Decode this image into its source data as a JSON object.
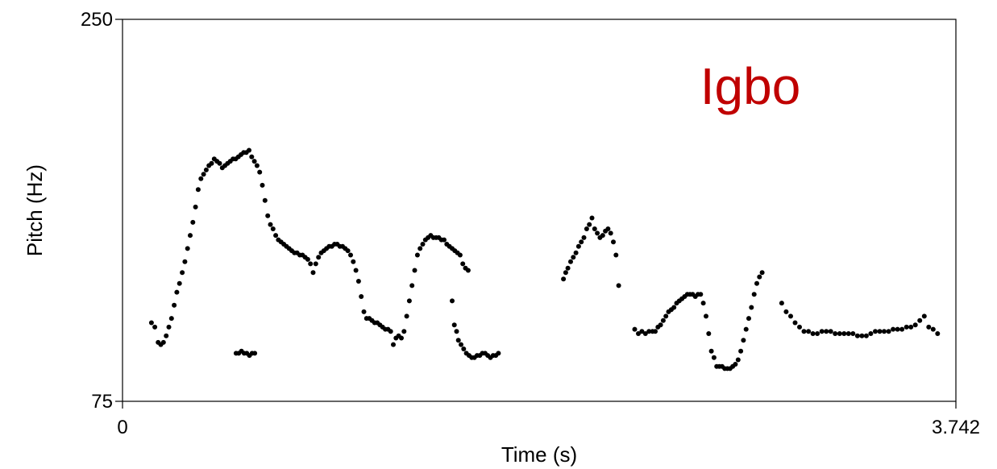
{
  "chart_data": {
    "type": "scatter",
    "xlabel": "Time (s)",
    "ylabel": "Pitch (Hz)",
    "xlim": [
      0,
      3.742
    ],
    "ylim": [
      75,
      250
    ],
    "xtick_labels": [
      "0",
      "3.742"
    ],
    "ytick_labels": [
      "75",
      "250"
    ],
    "grid": false,
    "annotation": {
      "text": "Igbo",
      "color": "#c00000"
    },
    "point_color": "#000000",
    "series": [
      {
        "x": [
          0.13,
          0.145,
          0.16,
          0.172,
          0.184,
          0.196,
          0.208,
          0.22,
          0.232,
          0.244,
          0.256,
          0.268,
          0.28,
          0.292,
          0.304,
          0.316,
          0.328,
          0.34,
          0.352,
          0.364,
          0.376,
          0.388,
          0.4,
          0.412,
          0.424,
          0.436,
          0.448,
          0.46,
          0.472,
          0.484,
          0.496,
          0.508,
          0.52,
          0.532,
          0.544,
          0.556,
          0.568,
          0.58,
          0.592,
          0.604,
          0.616,
          0.628,
          0.64,
          0.652,
          0.664,
          0.676,
          0.688,
          0.7,
          0.712,
          0.724,
          0.736,
          0.748,
          0.76,
          0.772,
          0.784,
          0.796,
          0.808,
          0.82,
          0.832,
          0.844,
          0.856,
          0.868,
          0.88,
          0.892,
          0.904,
          0.916,
          0.928,
          0.94,
          0.952,
          0.964,
          0.976,
          0.988,
          1.0,
          1.012,
          1.024,
          1.036,
          1.048,
          1.06,
          1.072,
          1.084,
          1.096,
          1.108,
          1.12,
          1.132,
          1.144,
          1.156,
          1.168,
          1.18,
          1.192,
          1.204,
          1.216,
          1.228,
          1.24,
          1.252,
          1.264,
          1.276,
          1.288,
          1.3,
          1.312,
          1.324,
          1.336,
          1.348,
          1.36,
          1.372,
          1.384,
          1.396,
          1.408,
          1.42,
          1.432,
          1.444,
          1.456,
          1.468,
          1.48,
          1.492,
          1.504,
          1.516,
          1.528,
          1.54,
          1.552
        ],
        "y": [
          111,
          109,
          102,
          101,
          102,
          105,
          109,
          113,
          119,
          125,
          129,
          134,
          139,
          145,
          151,
          157,
          164,
          172,
          177,
          179,
          181,
          183,
          184,
          186,
          185,
          184,
          182,
          183,
          184,
          185,
          186,
          186,
          187,
          188,
          189,
          189,
          190,
          187,
          185,
          183,
          180,
          174,
          167,
          160,
          156,
          154,
          151,
          149,
          148,
          147,
          146,
          145,
          144,
          143,
          143,
          142,
          142,
          141,
          140,
          138,
          134,
          138,
          141,
          143,
          144,
          145,
          146,
          146,
          147,
          147,
          146,
          146,
          145,
          144,
          142,
          139,
          135,
          130,
          123,
          116,
          113,
          113,
          112,
          111,
          111,
          110,
          109,
          108,
          108,
          107,
          101,
          104,
          105,
          104,
          107,
          114,
          121,
          128,
          135,
          142,
          145,
          147,
          149,
          150,
          151,
          150,
          150,
          150,
          149,
          149,
          147,
          146,
          145,
          144,
          143,
          142,
          138,
          136,
          135
        ]
      },
      {
        "x": [
          0.51,
          0.522,
          0.534,
          0.546,
          0.558,
          0.57,
          0.582,
          0.594
        ],
        "y": [
          97,
          97,
          98,
          97,
          97,
          96,
          97,
          97
        ]
      },
      {
        "x": [
          1.48,
          1.49,
          1.5,
          1.508,
          1.52,
          1.532,
          1.544,
          1.556,
          1.568,
          1.58,
          1.592,
          1.604,
          1.616,
          1.628,
          1.64,
          1.652,
          1.664,
          1.676,
          1.688
        ],
        "y": [
          121,
          110,
          107,
          103,
          101,
          99,
          97,
          96,
          95,
          95,
          96,
          96,
          97,
          97,
          96,
          95,
          96,
          96,
          97
        ]
      },
      {
        "x": [
          1.98,
          1.99,
          2.0,
          2.012,
          2.024,
          2.036,
          2.048,
          2.06,
          2.072,
          2.084,
          2.096,
          2.108,
          2.12,
          2.132,
          2.144,
          2.156,
          2.168,
          2.18,
          2.192,
          2.204,
          2.216,
          2.228
        ],
        "y": [
          131,
          134,
          136,
          139,
          141,
          143,
          146,
          148,
          150,
          154,
          156,
          159,
          154,
          152,
          150,
          151,
          153,
          154,
          152,
          148,
          142,
          128
        ]
      },
      {
        "x": [
          2.3,
          2.316,
          2.332,
          2.348,
          2.364,
          2.38,
          2.392,
          2.404,
          2.416,
          2.428,
          2.44,
          2.452,
          2.464,
          2.476,
          2.488,
          2.5,
          2.512,
          2.524,
          2.536,
          2.548,
          2.56,
          2.572,
          2.584,
          2.596,
          2.608,
          2.62,
          2.632,
          2.644,
          2.656,
          2.668,
          2.68,
          2.692,
          2.704,
          2.716,
          2.728,
          2.74,
          2.752,
          2.764,
          2.776,
          2.788,
          2.8,
          2.812,
          2.824,
          2.836,
          2.848,
          2.86,
          2.872
        ],
        "y": [
          108,
          106,
          107,
          106,
          107,
          107,
          107,
          109,
          110,
          112,
          114,
          116,
          117,
          118,
          120,
          121,
          122,
          123,
          124,
          124,
          124,
          123,
          124,
          124,
          120,
          114,
          106,
          98,
          95,
          91,
          91,
          91,
          90,
          90,
          90,
          91,
          92,
          94,
          98,
          103,
          108,
          113,
          118,
          124,
          129,
          132,
          134
        ]
      },
      {
        "x": [
          2.96,
          2.98,
          3.0,
          3.02,
          3.04,
          3.06,
          3.08,
          3.1,
          3.12,
          3.14,
          3.16,
          3.18,
          3.2,
          3.22,
          3.24,
          3.26,
          3.28,
          3.3,
          3.32,
          3.34,
          3.36,
          3.38,
          3.4,
          3.42,
          3.44,
          3.46,
          3.48,
          3.5,
          3.52,
          3.54,
          3.56,
          3.58,
          3.6,
          3.62,
          3.64,
          3.66
        ],
        "y": [
          120,
          116,
          114,
          111,
          109,
          107,
          107,
          106,
          106,
          107,
          107,
          107,
          106,
          106,
          106,
          106,
          106,
          105,
          105,
          105,
          106,
          107,
          107,
          107,
          107,
          108,
          108,
          108,
          109,
          109,
          110,
          112,
          114,
          109,
          108,
          106
        ]
      }
    ]
  }
}
